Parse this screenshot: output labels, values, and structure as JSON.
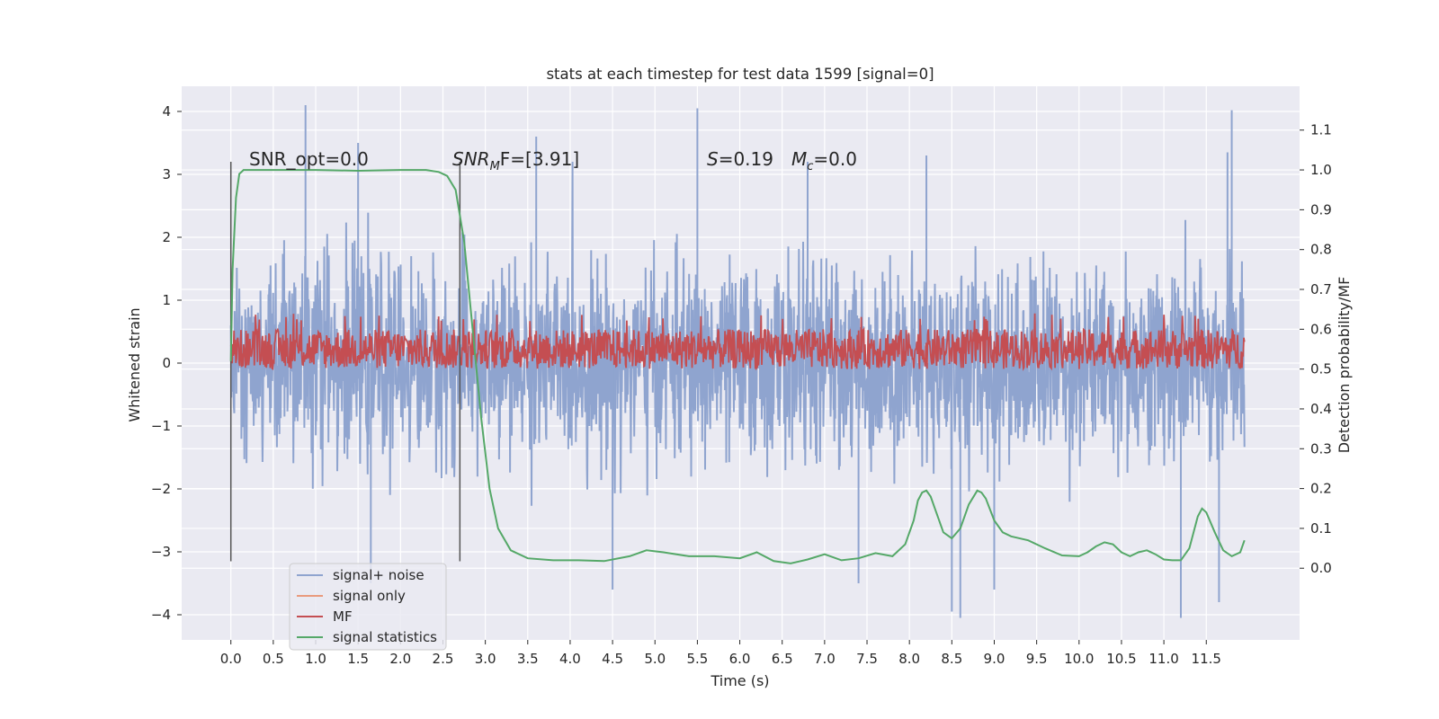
{
  "chart_data": {
    "type": "line",
    "title": "stats at each timestep for test data 1599 [signal=0]",
    "xlabel": "Time (s)",
    "ylabel": "Whitened strain",
    "ylabel_right": "Detection probability/MF",
    "xlim": [
      -0.58,
      12.6
    ],
    "ylim": [
      -4.4,
      4.4
    ],
    "ylim_right": [
      -0.18,
      1.21
    ],
    "x_ticks": [
      0.0,
      0.5,
      1.0,
      1.5,
      2.0,
      2.5,
      3.0,
      3.5,
      4.0,
      4.5,
      5.0,
      5.5,
      6.0,
      6.5,
      7.0,
      7.5,
      8.0,
      8.5,
      9.0,
      9.5,
      10.0,
      10.5,
      11.0,
      11.5
    ],
    "x_tick_labels": [
      "0.0",
      "0.5",
      "1.0",
      "1.5",
      "2.0",
      "2.5",
      "3.0",
      "3.5",
      "4.0",
      "4.5",
      "5.0",
      "5.5",
      "6.0",
      "6.5",
      "7.0",
      "7.5",
      "8.0",
      "8.5",
      "9.0",
      "9.5",
      "10.0",
      "10.5",
      "11.0",
      "11.5"
    ],
    "y_ticks": [
      -4,
      -3,
      -2,
      -1,
      0,
      1,
      2,
      3,
      4
    ],
    "y_tick_labels": [
      "−4",
      "−3",
      "−2",
      "−1",
      "0",
      "1",
      "2",
      "3",
      "4"
    ],
    "y_right_ticks": [
      0.0,
      0.1,
      0.2,
      0.3,
      0.4,
      0.5,
      0.6,
      0.7,
      0.8,
      0.9,
      1.0,
      1.1
    ],
    "y_right_tick_labels": [
      "0.0",
      "0.1",
      "0.2",
      "0.3",
      "0.4",
      "0.5",
      "0.6",
      "0.7",
      "0.8",
      "0.9",
      "1.0",
      "1.1"
    ],
    "grid": true,
    "legend_placement": "lower-left",
    "colors": {
      "signal_noise": "#8fa4cf",
      "signal_only": "#e99a7d",
      "mf": "#c44e52",
      "signal_statistics": "#55a868",
      "vline": "#555555",
      "background": "#eaeaf2"
    },
    "annotations": {
      "snr_opt": "SNR_opt=0.0",
      "snr_mf_base": "SNR",
      "snr_mf_sub": "M",
      "snr_mf_rest": "F=[3.91]",
      "s_label": "S",
      "s_value": "=0.19",
      "mc_base": "M",
      "mc_sub": "c",
      "mc_value": "=0.0"
    },
    "vertical_lines_x": [
      0.0,
      2.7
    ],
    "series": [
      {
        "name": "signal+ noise",
        "note_envelope": "noisy trace spanning most of the range",
        "x_range": [
          0.0,
          11.95
        ],
        "typical_range": [
          -1.9,
          1.9
        ],
        "peaks_up": [
          [
            0.88,
            4.1
          ],
          [
            5.5,
            4.05
          ],
          [
            11.8,
            4.02
          ],
          [
            11.75,
            3.35
          ],
          [
            3.6,
            3.6
          ],
          [
            1.5,
            3.5
          ],
          [
            8.2,
            3.3
          ],
          [
            6.8,
            3.2
          ]
        ],
        "peaks_down": [
          [
            4.5,
            -3.6
          ],
          [
            8.6,
            -4.05
          ],
          [
            11.2,
            -4.05
          ],
          [
            8.5,
            -3.95
          ],
          [
            11.65,
            -3.8
          ],
          [
            9.0,
            -3.6
          ],
          [
            7.4,
            -3.5
          ],
          [
            1.65,
            -3.5
          ]
        ]
      },
      {
        "name": "signal only",
        "values": []
      },
      {
        "name": "MF",
        "note_envelope": "band roughly between 0.5 and 0.6 on the right axis",
        "x_range": [
          0.0,
          11.95
        ],
        "band_right": [
          0.5,
          0.6
        ],
        "peaks_right": [
          0.62,
          0.64
        ]
      },
      {
        "name": "signal statistics",
        "x": [
          0.0,
          0.02,
          0.06,
          0.1,
          0.15,
          0.25,
          0.5,
          1.0,
          1.5,
          2.0,
          2.3,
          2.45,
          2.55,
          2.65,
          2.75,
          2.85,
          2.95,
          3.05,
          3.15,
          3.3,
          3.5,
          3.8,
          4.1,
          4.4,
          4.7,
          4.9,
          5.1,
          5.4,
          5.7,
          6.0,
          6.2,
          6.4,
          6.6,
          6.8,
          7.0,
          7.2,
          7.4,
          7.6,
          7.8,
          7.95,
          8.05,
          8.1,
          8.15,
          8.2,
          8.25,
          8.3,
          8.4,
          8.5,
          8.6,
          8.7,
          8.8,
          8.85,
          8.9,
          9.0,
          9.1,
          9.2,
          9.4,
          9.6,
          9.8,
          10.0,
          10.1,
          10.2,
          10.3,
          10.4,
          10.5,
          10.6,
          10.7,
          10.8,
          10.9,
          11.0,
          11.1,
          11.2,
          11.3,
          11.4,
          11.45,
          11.5,
          11.6,
          11.7,
          11.8,
          11.9,
          11.95
        ],
        "values": [
          0.52,
          0.75,
          0.93,
          0.99,
          1.0,
          1.0,
          1.0,
          1.0,
          0.998,
          1.0,
          1.0,
          0.995,
          0.985,
          0.95,
          0.82,
          0.6,
          0.38,
          0.2,
          0.1,
          0.045,
          0.025,
          0.02,
          0.02,
          0.018,
          0.03,
          0.045,
          0.04,
          0.03,
          0.03,
          0.025,
          0.04,
          0.018,
          0.012,
          0.022,
          0.035,
          0.02,
          0.025,
          0.038,
          0.03,
          0.06,
          0.12,
          0.17,
          0.19,
          0.195,
          0.18,
          0.15,
          0.09,
          0.075,
          0.1,
          0.16,
          0.195,
          0.19,
          0.175,
          0.12,
          0.09,
          0.08,
          0.07,
          0.05,
          0.032,
          0.03,
          0.04,
          0.055,
          0.065,
          0.06,
          0.04,
          0.03,
          0.04,
          0.045,
          0.035,
          0.022,
          0.02,
          0.02,
          0.05,
          0.13,
          0.15,
          0.14,
          0.09,
          0.045,
          0.03,
          0.04,
          0.07
        ]
      }
    ]
  }
}
